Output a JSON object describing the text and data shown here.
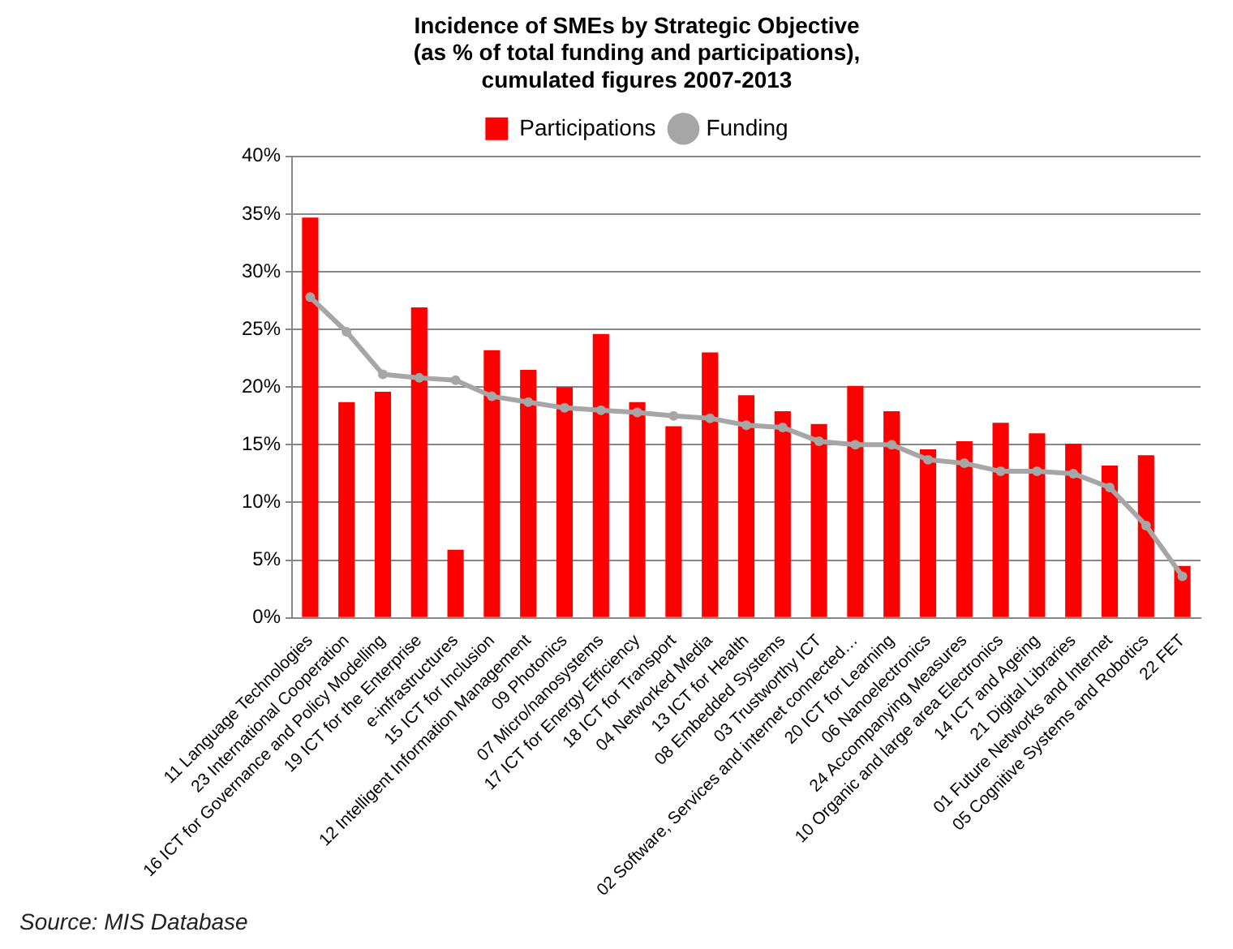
{
  "chart_data": {
    "type": "bar",
    "title": "Incidence of SMEs by Strategic Objective\n(as % of total funding and participations),\ncumulated figures 2007-2013",
    "categories": [
      "11 Language Technologies",
      "23 International Cooperation",
      "16 ICT for Governance and Policy Modelling",
      "19 ICT for the Enterprise",
      "e-infrastructures",
      "15 ICT for Inclusion",
      "12 Intelligent Information Management",
      "09 Photonics",
      "07 Micro/nanosystems",
      "17 ICT for Energy Efficiency",
      "18 ICT for Transport",
      "04 Networked Media",
      "13 ICT for Health",
      "08 Embedded Systems",
      "03 Trustworthy ICT",
      "02 Software, Services and internet connected…",
      "20 ICT for Learning",
      "06 Nanoelectronics",
      "24 Accompanying Measures",
      "10 Organic and large area Electronics",
      "14 ICT and Ageing",
      "21 Digital Libraries",
      "01 Future Networks and Internet",
      "05 Cognitive Systems and Robotics",
      "22 FET"
    ],
    "series": [
      {
        "name": "Participations",
        "color": "#ff0000",
        "values": [
          34.7,
          18.7,
          19.6,
          26.9,
          5.9,
          23.2,
          21.5,
          20.0,
          24.6,
          18.7,
          16.6,
          23.0,
          19.3,
          17.9,
          16.8,
          20.1,
          17.9,
          14.6,
          15.3,
          16.9,
          16.0,
          15.1,
          13.2,
          14.1,
          4.5
        ]
      },
      {
        "name": "Funding",
        "type": "line",
        "color": "#a6a6a6",
        "marker": "circle",
        "values": [
          27.8,
          24.8,
          21.1,
          20.8,
          20.6,
          19.2,
          18.7,
          18.2,
          18.0,
          17.8,
          17.5,
          17.3,
          16.7,
          16.5,
          15.3,
          15.0,
          15.0,
          13.7,
          13.4,
          12.7,
          12.7,
          12.5,
          11.3,
          8.0,
          3.6
        ]
      }
    ],
    "ylim": [
      0,
      40
    ],
    "yticks": [
      {
        "value": 0,
        "label": "0%"
      },
      {
        "value": 5,
        "label": "5%"
      },
      {
        "value": 10,
        "label": "10%"
      },
      {
        "value": 15,
        "label": "15%"
      },
      {
        "value": 20,
        "label": "20%"
      },
      {
        "value": 25,
        "label": "25%"
      },
      {
        "value": 30,
        "label": "30%"
      },
      {
        "value": 35,
        "label": "35%"
      },
      {
        "value": 40,
        "label": "40%"
      }
    ],
    "grid": "y",
    "legend": "top",
    "line_style": "solid",
    "annotations": [
      "Source:  MIS Database"
    ]
  }
}
